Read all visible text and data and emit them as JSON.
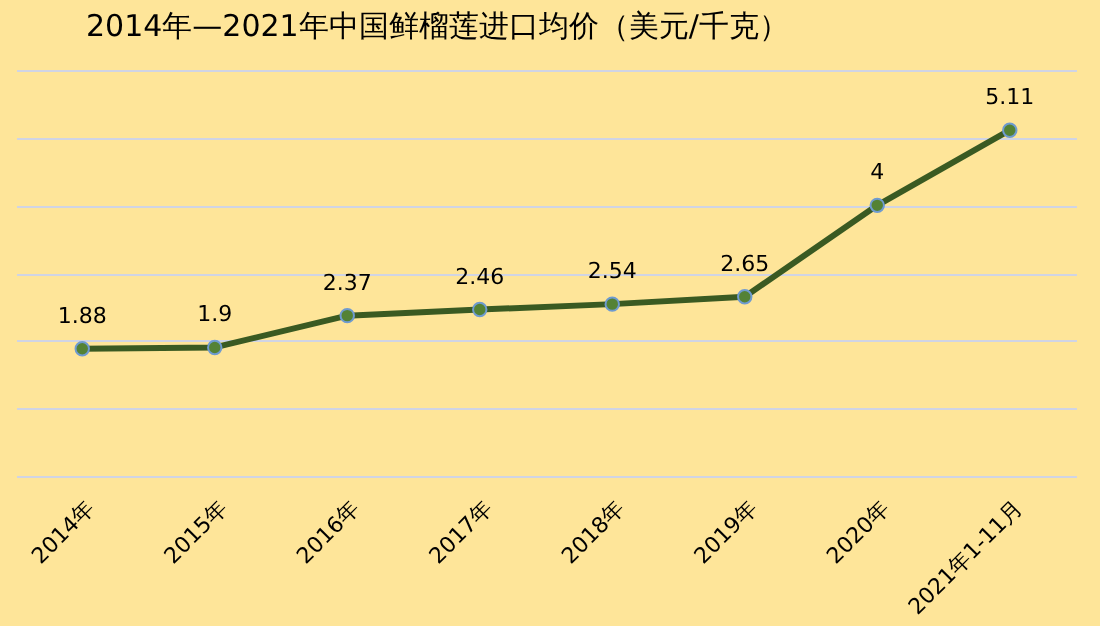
{
  "chart_data": {
    "type": "line",
    "title": "2014年—2021年中国鲜榴莲进口均价（美元/千克）",
    "categories": [
      "2014年",
      "2015年",
      "2016年",
      "2017年",
      "2018年",
      "2019年",
      "2020年",
      "2021年1-11月"
    ],
    "series": [
      {
        "color": "#3a5a22",
        "values": [
          1.88,
          1.9,
          2.37,
          2.46,
          2.54,
          2.65,
          4,
          5.11
        ]
      }
    ],
    "ylim": [
      0,
      6
    ],
    "tick_labels": "x",
    "grid": "y",
    "marker": "circle",
    "line_style": "solid",
    "data_labels": true
  }
}
